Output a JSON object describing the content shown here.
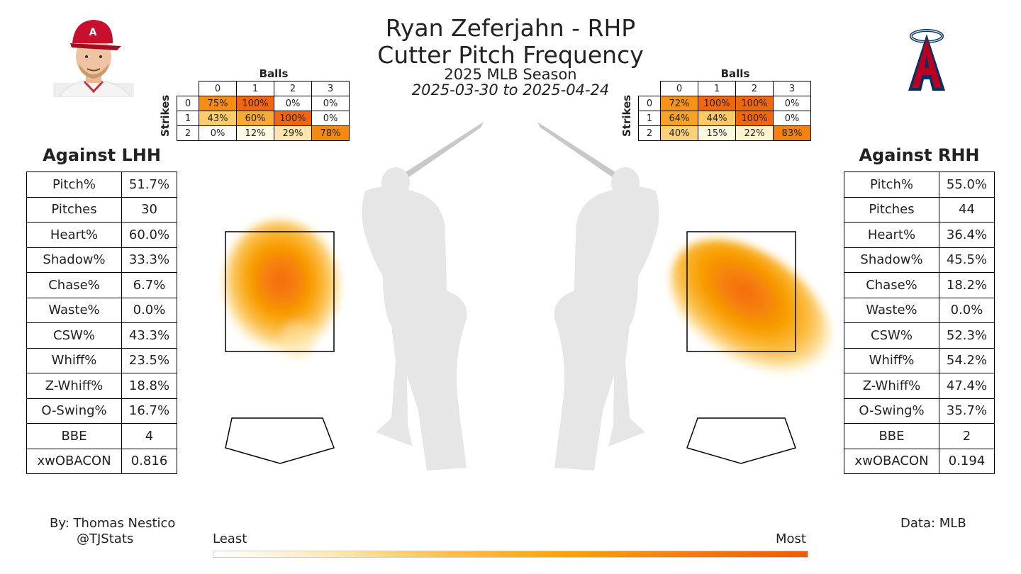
{
  "header": {
    "title": "Ryan Zeferjahn - RHP",
    "subtitle": "Cutter Pitch Frequency",
    "season": "2025 MLB Season",
    "date_range": "2025-03-30 to 2025-04-24"
  },
  "count_tables": {
    "balls_label": "Balls",
    "strikes_label": "Strikes",
    "ball_headers": [
      "0",
      "1",
      "2",
      "3"
    ],
    "strike_headers": [
      "0",
      "1",
      "2"
    ],
    "lhh": [
      [
        "75%",
        "100%",
        "0%",
        "0%"
      ],
      [
        "43%",
        "60%",
        "100%",
        "0%"
      ],
      [
        "0%",
        "12%",
        "29%",
        "78%"
      ]
    ],
    "rhh": [
      [
        "72%",
        "100%",
        "100%",
        "0%"
      ],
      [
        "64%",
        "44%",
        "100%",
        "0%"
      ],
      [
        "40%",
        "15%",
        "22%",
        "83%"
      ]
    ]
  },
  "lhh": {
    "title": "Against LHH",
    "stats": [
      {
        "label": "Pitch%",
        "value": "51.7%"
      },
      {
        "label": "Pitches",
        "value": "30"
      },
      {
        "label": "Heart%",
        "value": "60.0%"
      },
      {
        "label": "Shadow%",
        "value": "33.3%"
      },
      {
        "label": "Chase%",
        "value": "6.7%"
      },
      {
        "label": "Waste%",
        "value": "0.0%"
      },
      {
        "label": "CSW%",
        "value": "43.3%"
      },
      {
        "label": "Whiff%",
        "value": "23.5%"
      },
      {
        "label": "Z-Whiff%",
        "value": "18.8%"
      },
      {
        "label": "O-Swing%",
        "value": "16.7%"
      },
      {
        "label": "BBE",
        "value": "4"
      },
      {
        "label": "xwOBACON",
        "value": "0.816"
      }
    ]
  },
  "rhh": {
    "title": "Against RHH",
    "stats": [
      {
        "label": "Pitch%",
        "value": "55.0%"
      },
      {
        "label": "Pitches",
        "value": "44"
      },
      {
        "label": "Heart%",
        "value": "36.4%"
      },
      {
        "label": "Shadow%",
        "value": "45.5%"
      },
      {
        "label": "Chase%",
        "value": "18.2%"
      },
      {
        "label": "Waste%",
        "value": "0.0%"
      },
      {
        "label": "CSW%",
        "value": "52.3%"
      },
      {
        "label": "Whiff%",
        "value": "54.2%"
      },
      {
        "label": "Z-Whiff%",
        "value": "47.4%"
      },
      {
        "label": "O-Swing%",
        "value": "35.7%"
      },
      {
        "label": "BBE",
        "value": "2"
      },
      {
        "label": "xwOBACON",
        "value": "0.194"
      }
    ]
  },
  "footer": {
    "author": "By: Thomas Nestico",
    "handle": "@TJStats",
    "source": "Data: MLB"
  },
  "colorbar": {
    "low_label": "Least",
    "high_label": "Most",
    "colors": [
      "#ffffff",
      "#fde9b8",
      "#f8c04a",
      "#f6a500",
      "#f37b10",
      "#f05a0a"
    ]
  },
  "colors": {
    "heat_low": "#fff5d6",
    "heat_mid": "#fbb63c",
    "heat_high": "#f56c10",
    "angels_red": "#ba0021",
    "angels_navy": "#003263"
  },
  "icons": {
    "player_photo": "player-headshot",
    "team_logo": "angels-logo",
    "batter": "batter-silhouette"
  },
  "chart_data": [
    {
      "type": "heatmap",
      "name_context": "Count frequency vs LHH",
      "x": [
        "0",
        "1",
        "2",
        "3"
      ],
      "y": [
        "0",
        "1",
        "2"
      ],
      "xlabel": "Balls",
      "ylabel": "Strikes",
      "values": [
        [
          75,
          100,
          0,
          0
        ],
        [
          43,
          60,
          100,
          0
        ],
        [
          0,
          12,
          29,
          78
        ]
      ]
    },
    {
      "type": "heatmap",
      "name_context": "Count frequency vs RHH",
      "x": [
        "0",
        "1",
        "2",
        "3"
      ],
      "y": [
        "0",
        "1",
        "2"
      ],
      "xlabel": "Balls",
      "ylabel": "Strikes",
      "values": [
        [
          72,
          100,
          100,
          0
        ],
        [
          64,
          44,
          100,
          0
        ],
        [
          40,
          15,
          22,
          83
        ]
      ]
    }
  ]
}
